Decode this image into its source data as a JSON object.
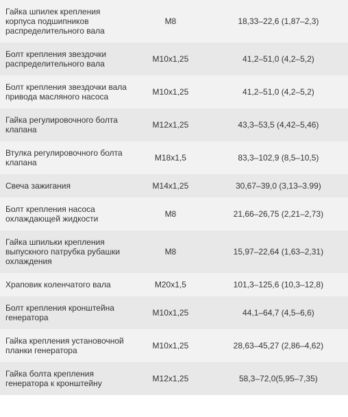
{
  "table": {
    "columns": [
      "name",
      "thread",
      "torque"
    ],
    "column_widths": [
      "38%",
      "22%",
      "40%"
    ],
    "col_align": [
      "left",
      "center",
      "center"
    ],
    "row_colors": [
      "#f2f2f2",
      "#e8e8e8"
    ],
    "font_size": 12,
    "text_color": "#333333",
    "rows": [
      {
        "name": "Гайка шпилек крепления корпуса подшипников распределительного вала",
        "thread": "М8",
        "torque": "18,33–22,6 (1,87–2,3)"
      },
      {
        "name": "Болт крепления звездочки распределительного вала",
        "thread": "М10х1,25",
        "torque": "41,2–51,0 (4,2–5,2)"
      },
      {
        "name": "Болт крепления звездочки вала привода масляного насоса",
        "thread": "М10х1,25",
        "torque": "41,2–51,0 (4,2–5,2)"
      },
      {
        "name": "Гайка регулировочного болта клапана",
        "thread": "М12х1,25",
        "torque": "43,3–53,5 (4,42–5,46)"
      },
      {
        "name": "Втулка регулировочного болта клапана",
        "thread": "М18х1,5",
        "torque": "83,3–102,9 (8,5–10,5)"
      },
      {
        "name": "Свеча зажигания",
        "thread": "М14х1,25",
        "torque": "30,67–39,0 (3,13–3.99)"
      },
      {
        "name": "Болт крепления насоса охлаждающей жидкости",
        "thread": "М8",
        "torque": "21,66–26,75 (2,21–2,73)"
      },
      {
        "name": "Гайка шпильки крепления выпускного патрубка рубашки охлаждения",
        "thread": "М8",
        "torque": "15,97–22,64 (1,63–2,31)"
      },
      {
        "name": "Храповик коленчатого вала",
        "thread": "М20х1,5",
        "torque": "101,3–125,6 (10,3–12,8)"
      },
      {
        "name": "Болт крепления кронштейна генератора",
        "thread": "М10х1,25",
        "torque": "44,1–64,7 (4,5–6,6)"
      },
      {
        "name": "Гайка крепления установочной планки генератора",
        "thread": "М10х1,25",
        "torque": "28,63–45,27 (2,86–4,62)"
      },
      {
        "name": "Гайка болта крепления генератора к кронштейну",
        "thread": "М12х1,25",
        "torque": "58,3–72,0(5,95–7,35)"
      }
    ]
  }
}
